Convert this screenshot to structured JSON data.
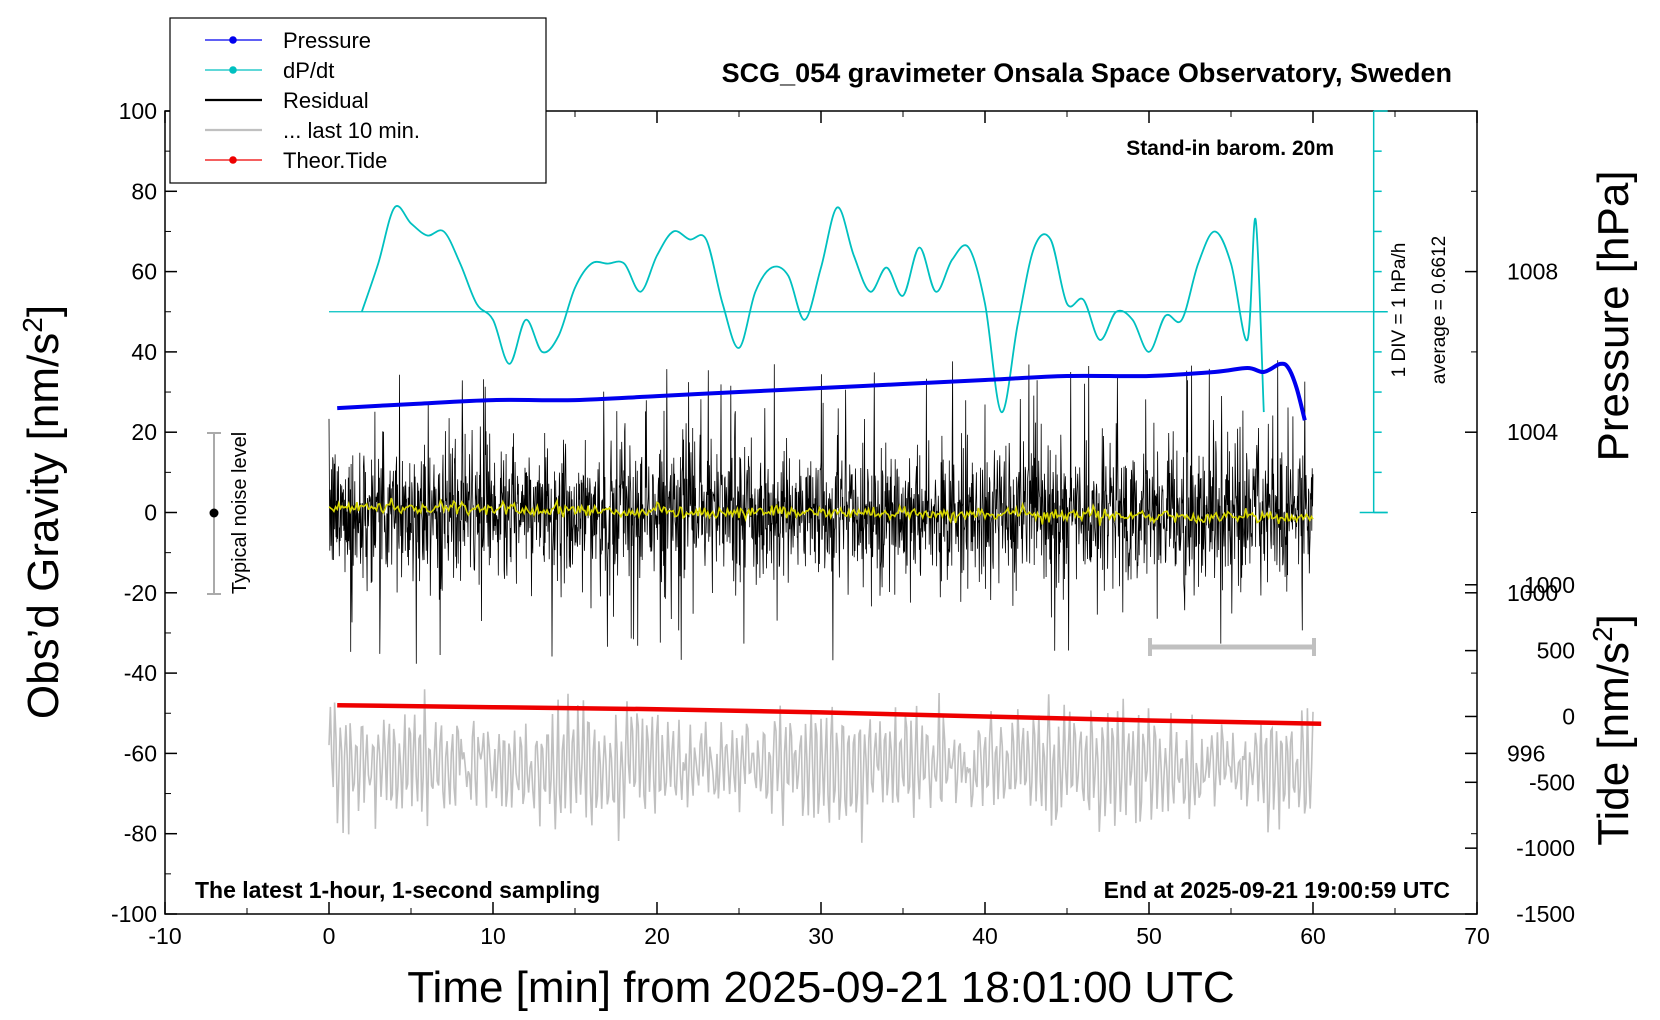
{
  "chart_data": {
    "type": "line",
    "title": "SCG_054 gravimeter Onsala Space Observatory, Sweden",
    "xlabel": "Time [min] from 2025-09-21 18:01:00 UTC",
    "ylabel_left": "Obs’d Gravity [nm/s",
    "ylabel_left_sup": "2",
    "ylabel_left_close": "]",
    "ylabel_right_top": "Pressure [hPa]",
    "ylabel_right_bottom": "Tide [nm/s",
    "ylabel_right_bottom_sup": "2",
    "ylabel_right_bottom_close": "]",
    "xlim": [
      -10,
      70
    ],
    "ylim": [
      -100,
      100
    ],
    "x_ticks": [
      -10,
      0,
      10,
      20,
      30,
      40,
      50,
      60,
      70
    ],
    "y_ticks": [
      -100,
      -80,
      -60,
      -40,
      -20,
      0,
      20,
      40,
      60,
      80,
      100
    ],
    "pressure_axis": {
      "ticks": [
        996,
        1000,
        1004,
        1008
      ],
      "range": [
        992,
        1012
      ]
    },
    "tide_axis": {
      "ticks": [
        -1500,
        -1000,
        -500,
        0,
        500,
        1000
      ],
      "range": [
        -1500,
        1000
      ]
    },
    "grid": false,
    "legend_position": "top-left",
    "legend": [
      {
        "label": "Pressure",
        "color": "#0000ee",
        "style": "line-dot"
      },
      {
        "label": "dP/dt",
        "color": "#00c0c0",
        "style": "line-dot"
      },
      {
        "label": "Residual",
        "color": "#000000",
        "style": "line"
      },
      {
        "label": "... last 10 min.",
        "color": "#c0c0c0",
        "style": "line"
      },
      {
        "label": "Theor.Tide",
        "color": "#ee0000",
        "style": "line-dot"
      }
    ],
    "annotations": {
      "barometer": "Stand-in barom. 20m",
      "latest": "The latest 1-hour, 1-second sampling",
      "end": "End at 2025-09-21 19:00:59 UTC",
      "div": "1 DIV = 1 hPa/h",
      "average": "average = 0.6612",
      "noise": "Typical noise level"
    },
    "series": [
      {
        "name": "Pressure",
        "unit": "hPa",
        "color": "#0000ee",
        "x": [
          0.5,
          5,
          10,
          15,
          20,
          25,
          30,
          35,
          40,
          45,
          50,
          54,
          56,
          57,
          58,
          58.5,
          59,
          59.5
        ],
        "values": [
          1004.6,
          1004.7,
          1004.8,
          1004.8,
          1004.9,
          1005.0,
          1005.1,
          1005.2,
          1005.3,
          1005.4,
          1005.4,
          1005.5,
          1005.6,
          1005.5,
          1005.7,
          1005.6,
          1005.1,
          1004.3
        ]
      },
      {
        "name": "dP/dt",
        "unit": "nm/s2 (scaled)",
        "color": "#00c0c0",
        "x": [
          2,
          3,
          4,
          5,
          6,
          7,
          8,
          9,
          10,
          11,
          12,
          13,
          14,
          15,
          16,
          17,
          18,
          19,
          20,
          21,
          22,
          23,
          24,
          25,
          26,
          27,
          28,
          29,
          30,
          31,
          32,
          33,
          34,
          35,
          36,
          37,
          38,
          39,
          40,
          41,
          42,
          43,
          44,
          45,
          46,
          47,
          48,
          49,
          50,
          51,
          52,
          53,
          54,
          55,
          56,
          56.5,
          57
        ],
        "values": [
          50,
          62,
          76,
          72,
          69,
          70,
          62,
          52,
          48,
          37,
          48,
          40,
          44,
          56,
          62,
          62,
          62,
          55,
          64,
          70,
          68,
          68,
          52,
          41,
          55,
          61,
          59,
          48,
          61,
          76,
          64,
          55,
          61,
          54,
          66,
          55,
          63,
          66,
          52,
          25,
          47,
          66,
          68,
          52,
          53,
          43,
          50,
          48,
          40,
          49,
          48,
          62,
          70,
          62,
          43,
          73,
          25
        ]
      },
      {
        "name": "Residual",
        "unit": "nm/s2",
        "color": "#000000",
        "x_range": [
          0,
          60
        ],
        "amplitude": 14,
        "spike_max": 38
      },
      {
        "name": "... last 10 min.",
        "unit": "nm/s2 (offset)",
        "color": "#c0c0c0",
        "x_range": [
          0,
          60
        ],
        "center": -63,
        "amplitude": 12
      },
      {
        "name": "Theor.Tide",
        "unit": "nm/s2",
        "color": "#ee0000",
        "x": [
          0.5,
          10,
          20,
          30,
          40,
          50,
          60.5
        ],
        "values": [
          -48,
          -48.5,
          -49,
          -49.8,
          -50.8,
          -51.8,
          -52.6
        ]
      },
      {
        "name": "Residual smoothed",
        "color": "#d6d600",
        "x": [
          0,
          5,
          10,
          15,
          20,
          25,
          30,
          35,
          40,
          45,
          50,
          55,
          60
        ],
        "values": [
          1.5,
          1.2,
          0.8,
          0.5,
          0.2,
          0.1,
          0,
          -0.2,
          -0.4,
          -0.6,
          -0.8,
          -1.0,
          -1.5
        ]
      }
    ]
  }
}
